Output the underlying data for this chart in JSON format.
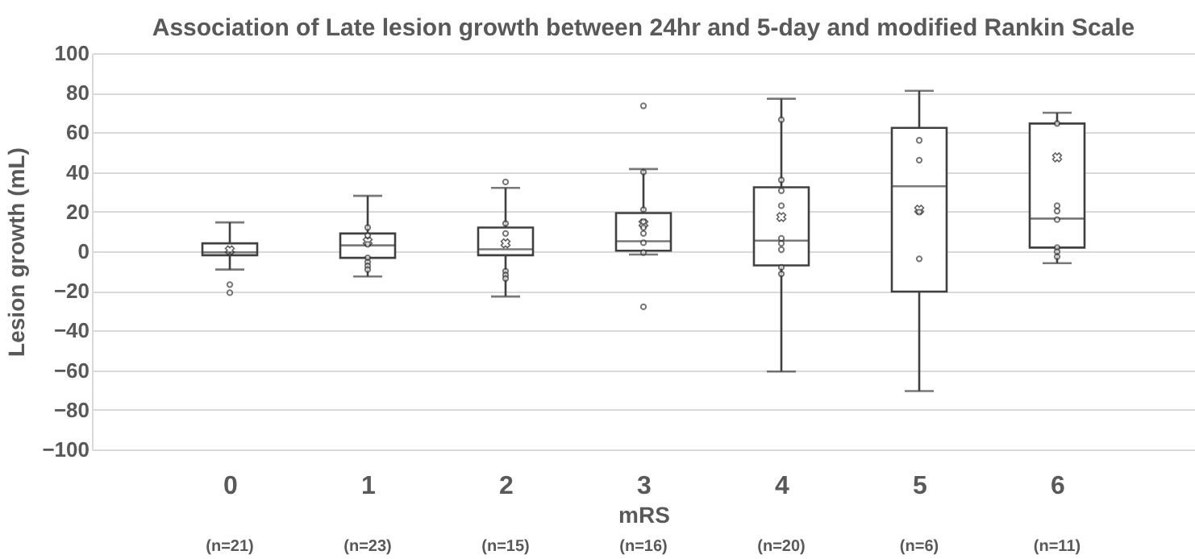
{
  "chart_data": {
    "type": "box",
    "title": "Association of Late lesion growth between 24hr and 5-day and modified Rankin Scale",
    "xlabel": "mRS",
    "ylabel": "Lesion growth (mL)",
    "categories": [
      "0",
      "1",
      "2",
      "3",
      "4",
      "5",
      "6"
    ],
    "boxes": [
      {
        "low": -9.2,
        "q1": -2,
        "median": -0.5,
        "q3": 4,
        "high": 14.6,
        "mean": 0.5,
        "outliers": [
          -16.8,
          -20.9
        ]
      },
      {
        "low": -12.7,
        "q1": -3.3,
        "median": 3,
        "q3": 9,
        "high": 28,
        "mean": 5,
        "outliers": [
          12,
          8,
          3.5,
          -3.3,
          -5.5,
          -7.4,
          -9.2
        ]
      },
      {
        "low": -22.8,
        "q1": -2,
        "median": 1,
        "q3": 12,
        "high": 32,
        "mean": 4,
        "outliers": [
          35,
          14,
          9,
          -10,
          -12,
          -13.7
        ]
      },
      {
        "low": -1.6,
        "q1": 0.3,
        "median": 5.1,
        "q3": 19.3,
        "high": 41.5,
        "mean": 14,
        "outliers": [
          73.4,
          40,
          21,
          15,
          12,
          9,
          4.3,
          -0.6,
          -28
        ]
      },
      {
        "low": -60.7,
        "q1": -7.1,
        "median": 5.4,
        "q3": 32.3,
        "high": 77,
        "mean": 17.3,
        "outliers": [
          66.4,
          36,
          30.6,
          23,
          6.5,
          4,
          0.8,
          -8.1,
          -11.4
        ]
      },
      {
        "low": -70.5,
        "q1": -20.3,
        "median": 32.8,
        "q3": 62.3,
        "high": 81,
        "mean": 21,
        "outliers": [
          56,
          46,
          19.8,
          -3.8
        ]
      },
      {
        "low": -6,
        "q1": 1.9,
        "median": 16.5,
        "q3": 64.5,
        "high": 69.9,
        "mean": 47.4,
        "outliers": [
          64.5,
          23,
          20.3,
          16,
          1.9,
          -0.2,
          -2.7
        ]
      }
    ],
    "ylim": [
      -100,
      100
    ],
    "yticks": [
      -100,
      -80,
      -60,
      -40,
      -20,
      0,
      20,
      40,
      60,
      80,
      100
    ],
    "grid": "y",
    "annotations": [
      "(n=21)",
      "(n=23)",
      "(n=15)",
      "(n=16)",
      "(n=20)",
      "(n=6)",
      "(n=11)"
    ]
  }
}
